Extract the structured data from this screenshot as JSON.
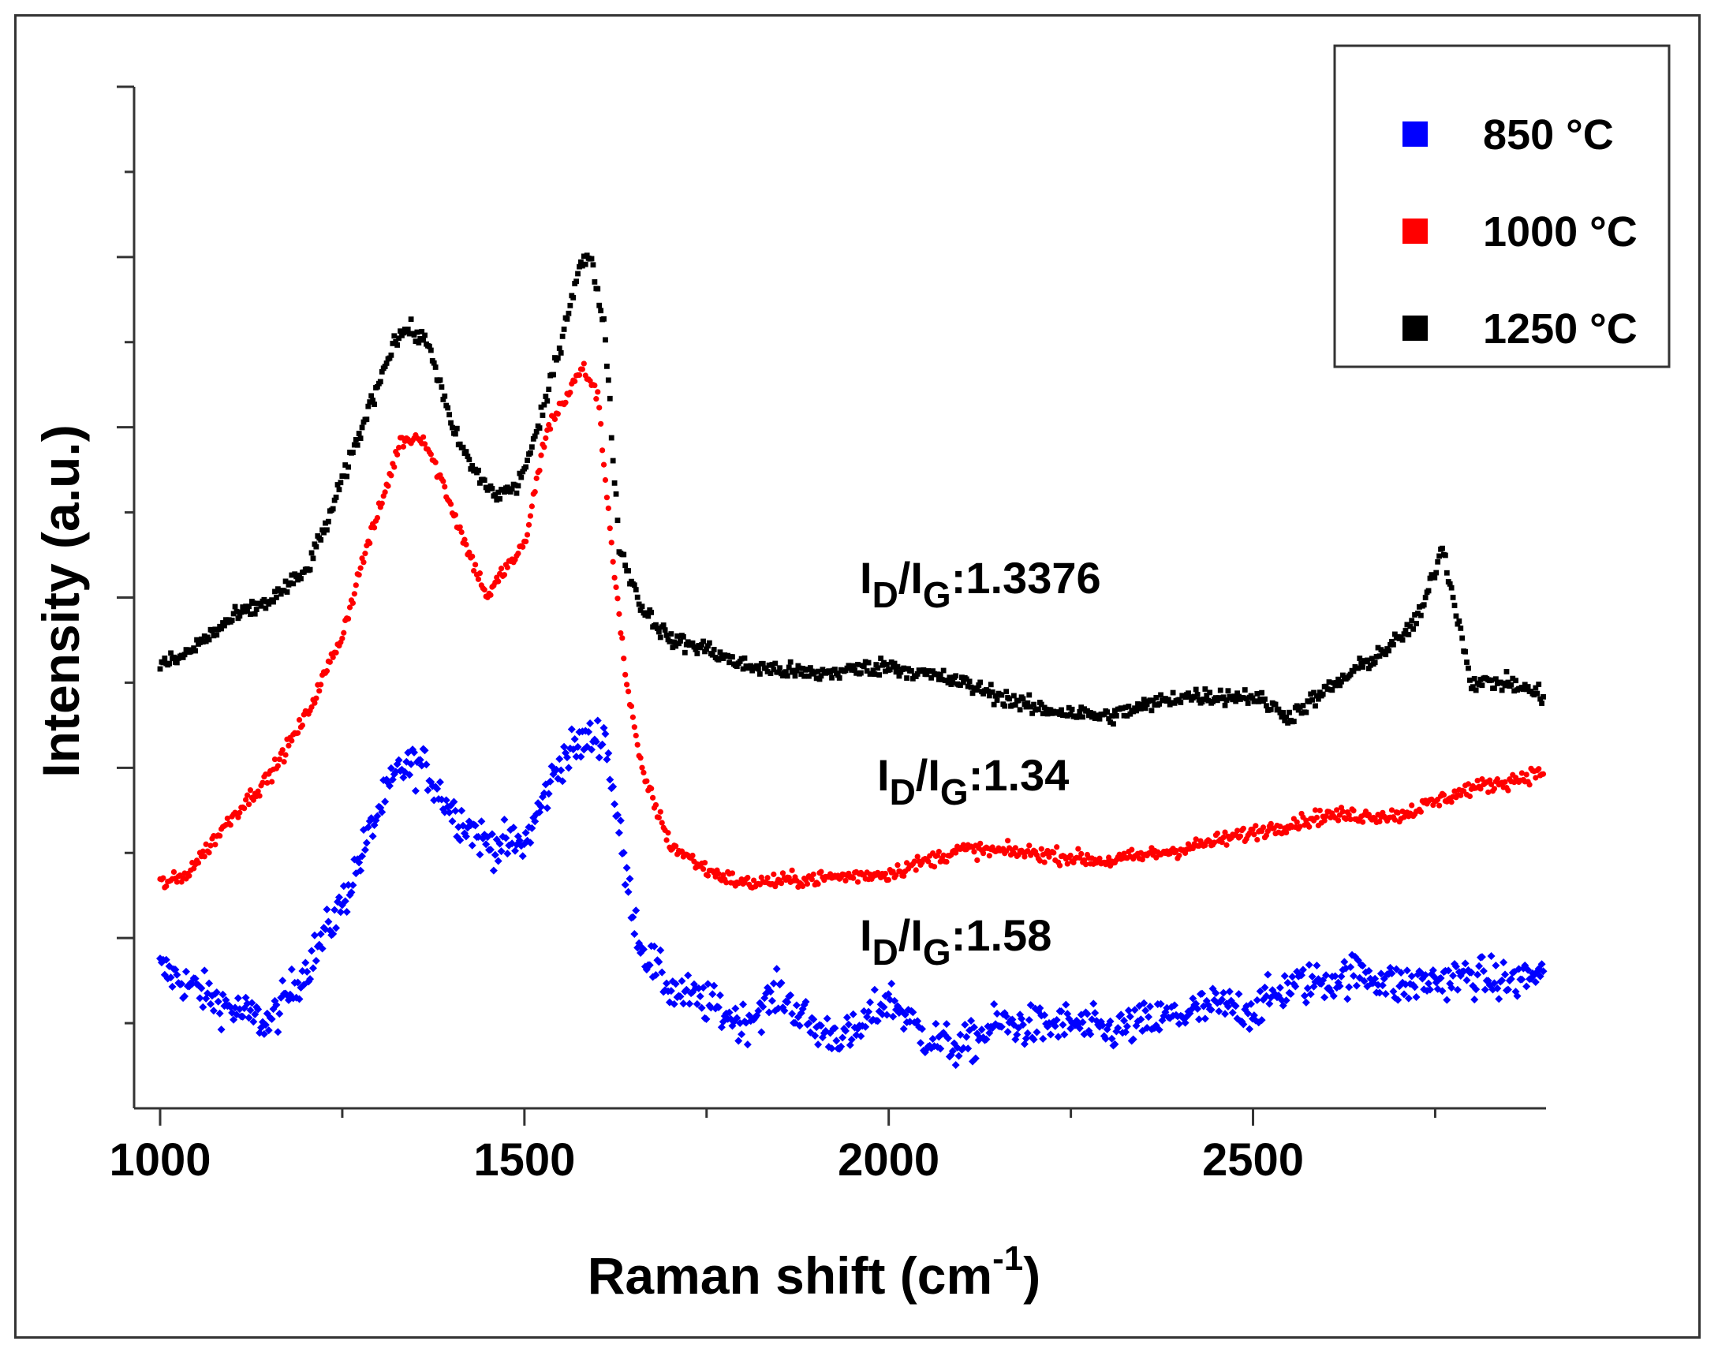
{
  "chart_data": {
    "type": "scatter",
    "title": "",
    "xlabel": {
      "main": "Raman shift (cm",
      "sup": "-1",
      "close": ")"
    },
    "ylabel": "Intensity (a.u.)",
    "xlim": [
      1000,
      2900
    ],
    "ylim": [
      0,
      6
    ],
    "xticks": [
      1000,
      1500,
      2000,
      2500
    ],
    "yticks_unlabeled": [
      1,
      2,
      3,
      4,
      5,
      6
    ],
    "legend": [
      {
        "label": "850 °C",
        "color": "#0000ff",
        "marker": "square"
      },
      {
        "label": "1000 °C",
        "color": "#ff0000",
        "marker": "square"
      },
      {
        "label": "1250 °C",
        "color": "#000000",
        "marker": "square"
      }
    ],
    "series": [
      {
        "name": "850 °C",
        "color": "#0000ff",
        "marker": "diamond",
        "noise": 0.12,
        "x": [
          1000,
          1050,
          1100,
          1150,
          1200,
          1250,
          1300,
          1330,
          1360,
          1400,
          1450,
          1500,
          1550,
          1580,
          1610,
          1640,
          1660,
          1700,
          1750,
          1800,
          1850,
          1900,
          1950,
          2000,
          2050,
          2100,
          2150,
          2200,
          2250,
          2300,
          2400,
          2450,
          2500,
          2550,
          2600,
          2650,
          2700,
          2750,
          2800,
          2850,
          2900
        ],
        "y": [
          0.82,
          0.7,
          0.58,
          0.5,
          0.82,
          1.2,
          1.75,
          2.0,
          2.02,
          1.75,
          1.55,
          1.55,
          2.05,
          2.15,
          2.2,
          1.35,
          0.95,
          0.7,
          0.62,
          0.5,
          0.68,
          0.46,
          0.42,
          0.65,
          0.42,
          0.35,
          0.5,
          0.48,
          0.5,
          0.45,
          0.55,
          0.6,
          0.58,
          0.72,
          0.75,
          0.8,
          0.72,
          0.75,
          0.78,
          0.74,
          0.8
        ]
      },
      {
        "name": "1000 °C",
        "color": "#ff0000",
        "marker": "circle",
        "noise": 0.045,
        "x": [
          1000,
          1030,
          1060,
          1100,
          1150,
          1200,
          1250,
          1280,
          1300,
          1330,
          1360,
          1390,
          1420,
          1450,
          1470,
          1500,
          1530,
          1560,
          1580,
          1600,
          1620,
          1640,
          1660,
          1700,
          1750,
          1800,
          1900,
          2000,
          2100,
          2200,
          2300,
          2400,
          2500,
          2600,
          2700,
          2800,
          2850,
          2900
        ],
        "y": [
          1.32,
          1.35,
          1.5,
          1.72,
          1.95,
          2.3,
          2.78,
          3.25,
          3.5,
          3.92,
          3.95,
          3.65,
          3.3,
          3.0,
          3.15,
          3.3,
          3.98,
          4.2,
          4.35,
          4.2,
          3.3,
          2.5,
          2.0,
          1.55,
          1.4,
          1.32,
          1.35,
          1.38,
          1.52,
          1.5,
          1.45,
          1.52,
          1.62,
          1.72,
          1.72,
          1.88,
          1.92,
          1.98
        ]
      },
      {
        "name": "1250 °C",
        "color": "#000000",
        "marker": "square",
        "noise": 0.05,
        "x": [
          1000,
          1030,
          1060,
          1100,
          1150,
          1200,
          1230,
          1260,
          1290,
          1320,
          1340,
          1370,
          1400,
          1430,
          1460,
          1490,
          1520,
          1550,
          1575,
          1590,
          1610,
          1630,
          1660,
          1700,
          1750,
          1800,
          1900,
          2000,
          2100,
          2200,
          2300,
          2400,
          2500,
          2550,
          2600,
          2650,
          2700,
          2730,
          2760,
          2790,
          2800,
          2850,
          2900
        ],
        "y": [
          2.6,
          2.65,
          2.75,
          2.88,
          2.98,
          3.15,
          3.45,
          3.8,
          4.15,
          4.5,
          4.58,
          4.48,
          4.0,
          3.75,
          3.6,
          3.65,
          4.0,
          4.5,
          4.95,
          5.0,
          4.6,
          3.3,
          2.95,
          2.75,
          2.7,
          2.6,
          2.55,
          2.6,
          2.5,
          2.35,
          2.3,
          2.42,
          2.42,
          2.3,
          2.45,
          2.6,
          2.75,
          2.9,
          3.3,
          2.7,
          2.5,
          2.5,
          2.42
        ]
      }
    ],
    "annotations": [
      {
        "main": "I",
        "sub1": "D",
        "slash": "/I",
        "sub2": "G",
        "value": ":1.3376",
        "series": "1250 °C"
      },
      {
        "main": "I",
        "sub1": "D",
        "slash": "/I",
        "sub2": "G",
        "value": ":1.34",
        "series": "1000 °C"
      },
      {
        "main": "I",
        "sub1": "D",
        "slash": "/I",
        "sub2": "G",
        "value": ":1.58",
        "series": "850 °C"
      }
    ]
  }
}
